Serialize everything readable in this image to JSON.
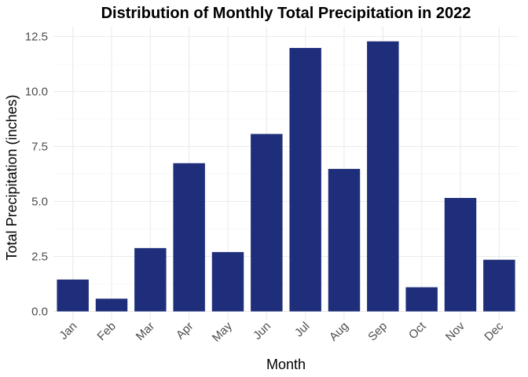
{
  "chart_data": {
    "type": "bar",
    "title": "Distribution of Monthly Total Precipitation in 2022",
    "xlabel": "Month",
    "ylabel": "Total Precipitation (inches)",
    "categories": [
      "Jan",
      "Feb",
      "Mar",
      "Apr",
      "May",
      "Jun",
      "Jul",
      "Aug",
      "Sep",
      "Oct",
      "Nov",
      "Dec"
    ],
    "values": [
      1.45,
      0.58,
      2.88,
      6.74,
      2.7,
      8.07,
      11.98,
      6.48,
      12.28,
      1.1,
      5.16,
      2.35
    ],
    "ylim": [
      0,
      12.5
    ],
    "yticks": [
      0,
      2.5,
      5,
      7.5,
      10,
      12.5
    ],
    "ytick_labels": [
      "0.0",
      "2.5",
      "5.0",
      "7.5",
      "10.0",
      "12.5"
    ],
    "bar_color": "#1F2E7A",
    "grid": true,
    "legend": "none"
  }
}
